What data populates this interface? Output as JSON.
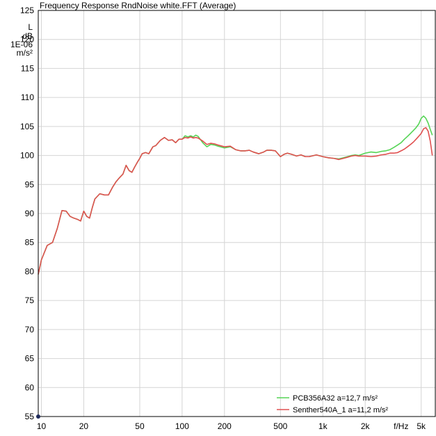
{
  "chart_data": {
    "type": "line",
    "title": "Frequency Response RndNoise white.FFT (Average)",
    "ylabel_lines": [
      "L",
      "dB",
      "1E-06",
      "m/s²"
    ],
    "xlabel": "f/Hz",
    "x_scale": "log",
    "xlim": [
      9.5,
      6300
    ],
    "ylim": [
      55,
      125
    ],
    "y_ticks": [
      55,
      60,
      65,
      70,
      75,
      80,
      85,
      90,
      95,
      100,
      105,
      110,
      115,
      120,
      125
    ],
    "x_ticks": [
      {
        "value": 10,
        "label": "10"
      },
      {
        "value": 20,
        "label": "20"
      },
      {
        "value": 50,
        "label": "50"
      },
      {
        "value": 100,
        "label": "100"
      },
      {
        "value": 200,
        "label": "200"
      },
      {
        "value": 500,
        "label": "500"
      },
      {
        "value": 1000,
        "label": "1k"
      },
      {
        "value": 2000,
        "label": "2k"
      },
      {
        "value": 5000,
        "label": "5k"
      }
    ],
    "x_unit_label": {
      "value": 3600,
      "label": "f/Hz"
    },
    "grid": true,
    "legend_position": "bottom-right",
    "series": [
      {
        "name": "PCB356A32 a=12,7 m/s²",
        "color": "#55d455",
        "points": [
          [
            9.5,
            79.5
          ],
          [
            10,
            82
          ],
          [
            11,
            84.5
          ],
          [
            12,
            85
          ],
          [
            13,
            87.5
          ],
          [
            14,
            90.5
          ],
          [
            15,
            90.4
          ],
          [
            16,
            89.5
          ],
          [
            17,
            89.2
          ],
          [
            18,
            89
          ],
          [
            19,
            88.7
          ],
          [
            20,
            90.4
          ],
          [
            21,
            89.5
          ],
          [
            22,
            89.2
          ],
          [
            23,
            91
          ],
          [
            24,
            92.5
          ],
          [
            26,
            93.4
          ],
          [
            28,
            93.2
          ],
          [
            30,
            93.2
          ],
          [
            32,
            94.5
          ],
          [
            34,
            95.5
          ],
          [
            36,
            96.2
          ],
          [
            38,
            96.8
          ],
          [
            40,
            98.3
          ],
          [
            42,
            97.4
          ],
          [
            44,
            97.1
          ],
          [
            46,
            98
          ],
          [
            48,
            98.8
          ],
          [
            50,
            99.5
          ],
          [
            52,
            100.3
          ],
          [
            55,
            100.5
          ],
          [
            58,
            100.3
          ],
          [
            62,
            101.5
          ],
          [
            65,
            101.7
          ],
          [
            70,
            102.6
          ],
          [
            75,
            103.1
          ],
          [
            80,
            102.6
          ],
          [
            85,
            102.7
          ],
          [
            90,
            102.2
          ],
          [
            95,
            102.8
          ],
          [
            100,
            102.8
          ],
          [
            105,
            103.4
          ],
          [
            110,
            103.2
          ],
          [
            115,
            103.4
          ],
          [
            120,
            103.2
          ],
          [
            125,
            103.5
          ],
          [
            130,
            103.3
          ],
          [
            140,
            102.2
          ],
          [
            150,
            101.5
          ],
          [
            160,
            101.9
          ],
          [
            170,
            101.8
          ],
          [
            180,
            101.6
          ],
          [
            200,
            101.3
          ],
          [
            220,
            101.5
          ],
          [
            240,
            101
          ],
          [
            260,
            100.8
          ],
          [
            280,
            100.8
          ],
          [
            300,
            100.9
          ],
          [
            320,
            100.6
          ],
          [
            350,
            100.3
          ],
          [
            380,
            100.6
          ],
          [
            400,
            100.9
          ],
          [
            430,
            100.9
          ],
          [
            460,
            100.8
          ],
          [
            500,
            99.8
          ],
          [
            530,
            100.2
          ],
          [
            560,
            100.4
          ],
          [
            600,
            100.2
          ],
          [
            650,
            99.9
          ],
          [
            700,
            100.1
          ],
          [
            750,
            99.8
          ],
          [
            800,
            99.8
          ],
          [
            900,
            100.1
          ],
          [
            1000,
            99.8
          ],
          [
            1100,
            99.6
          ],
          [
            1200,
            99.5
          ],
          [
            1300,
            99.4
          ],
          [
            1400,
            99.6
          ],
          [
            1500,
            99.8
          ],
          [
            1600,
            100
          ],
          [
            1700,
            100.1
          ],
          [
            1800,
            100
          ],
          [
            1900,
            100.2
          ],
          [
            2000,
            100.4
          ],
          [
            2200,
            100.6
          ],
          [
            2400,
            100.5
          ],
          [
            2600,
            100.7
          ],
          [
            2800,
            100.8
          ],
          [
            3000,
            101
          ],
          [
            3200,
            101.4
          ],
          [
            3400,
            101.8
          ],
          [
            3600,
            102.2
          ],
          [
            3800,
            102.8
          ],
          [
            4000,
            103.3
          ],
          [
            4200,
            103.8
          ],
          [
            4400,
            104.3
          ],
          [
            4600,
            104.8
          ],
          [
            4800,
            105.4
          ],
          [
            5000,
            106.4
          ],
          [
            5200,
            106.8
          ],
          [
            5400,
            106.4
          ],
          [
            5600,
            105.6
          ],
          [
            5800,
            104.5
          ],
          [
            6000,
            103.5
          ]
        ]
      },
      {
        "name": "Senther540A_1 a=11,2 m/s²",
        "color": "#e05050",
        "points": [
          [
            9.5,
            79.5
          ],
          [
            10,
            82
          ],
          [
            11,
            84.5
          ],
          [
            12,
            85
          ],
          [
            13,
            87.5
          ],
          [
            14,
            90.5
          ],
          [
            15,
            90.4
          ],
          [
            16,
            89.5
          ],
          [
            17,
            89.2
          ],
          [
            18,
            89
          ],
          [
            19,
            88.7
          ],
          [
            20,
            90.4
          ],
          [
            21,
            89.5
          ],
          [
            22,
            89.2
          ],
          [
            23,
            91
          ],
          [
            24,
            92.5
          ],
          [
            26,
            93.4
          ],
          [
            28,
            93.2
          ],
          [
            30,
            93.2
          ],
          [
            32,
            94.5
          ],
          [
            34,
            95.5
          ],
          [
            36,
            96.2
          ],
          [
            38,
            96.8
          ],
          [
            40,
            98.3
          ],
          [
            42,
            97.4
          ],
          [
            44,
            97.1
          ],
          [
            46,
            98
          ],
          [
            48,
            98.8
          ],
          [
            50,
            99.5
          ],
          [
            52,
            100.3
          ],
          [
            55,
            100.5
          ],
          [
            58,
            100.3
          ],
          [
            62,
            101.5
          ],
          [
            65,
            101.7
          ],
          [
            70,
            102.6
          ],
          [
            75,
            103.1
          ],
          [
            80,
            102.6
          ],
          [
            85,
            102.7
          ],
          [
            90,
            102.2
          ],
          [
            95,
            102.8
          ],
          [
            100,
            102.8
          ],
          [
            105,
            103.1
          ],
          [
            110,
            103
          ],
          [
            115,
            103.2
          ],
          [
            120,
            103
          ],
          [
            125,
            103.1
          ],
          [
            130,
            103
          ],
          [
            140,
            102.5
          ],
          [
            150,
            101.9
          ],
          [
            160,
            102.1
          ],
          [
            170,
            102
          ],
          [
            180,
            101.8
          ],
          [
            200,
            101.5
          ],
          [
            220,
            101.6
          ],
          [
            240,
            101
          ],
          [
            260,
            100.8
          ],
          [
            280,
            100.8
          ],
          [
            300,
            100.9
          ],
          [
            320,
            100.6
          ],
          [
            350,
            100.3
          ],
          [
            380,
            100.6
          ],
          [
            400,
            100.9
          ],
          [
            430,
            100.9
          ],
          [
            460,
            100.8
          ],
          [
            500,
            99.8
          ],
          [
            530,
            100.2
          ],
          [
            560,
            100.4
          ],
          [
            600,
            100.2
          ],
          [
            650,
            99.9
          ],
          [
            700,
            100.1
          ],
          [
            750,
            99.8
          ],
          [
            800,
            99.8
          ],
          [
            900,
            100.1
          ],
          [
            1000,
            99.8
          ],
          [
            1100,
            99.6
          ],
          [
            1200,
            99.5
          ],
          [
            1300,
            99.3
          ],
          [
            1400,
            99.5
          ],
          [
            1500,
            99.7
          ],
          [
            1600,
            99.9
          ],
          [
            1700,
            100
          ],
          [
            1800,
            99.9
          ],
          [
            1900,
            99.9
          ],
          [
            2000,
            99.9
          ],
          [
            2200,
            99.8
          ],
          [
            2400,
            99.9
          ],
          [
            2600,
            100.1
          ],
          [
            2800,
            100.2
          ],
          [
            3000,
            100.4
          ],
          [
            3200,
            100.4
          ],
          [
            3400,
            100.5
          ],
          [
            3600,
            100.8
          ],
          [
            3800,
            101.1
          ],
          [
            4000,
            101.5
          ],
          [
            4200,
            101.9
          ],
          [
            4400,
            102.3
          ],
          [
            4600,
            102.8
          ],
          [
            4800,
            103.3
          ],
          [
            5000,
            103.8
          ],
          [
            5200,
            104.6
          ],
          [
            5400,
            104.8
          ],
          [
            5600,
            104.2
          ],
          [
            5800,
            102.5
          ],
          [
            6000,
            100
          ]
        ]
      }
    ]
  }
}
